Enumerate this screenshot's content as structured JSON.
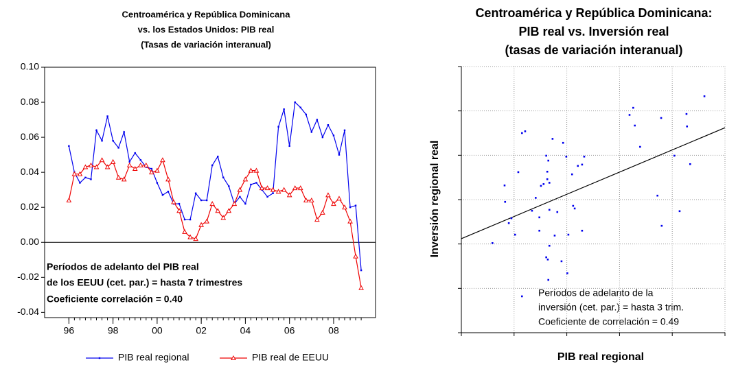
{
  "chart_data": [
    {
      "type": "line",
      "title": [
        "Centroamérica y República Dominicana",
        "vs. los Estados Unidos: PIB real",
        "(Tasas de variación interanual)"
      ],
      "annotations": [
        "Períodos de adelanto del PIB real",
        "de los EEUU (cet. par.) = hasta 7 trimestres",
        "Coeficiente correlación = 0.40"
      ],
      "x": [
        1996.0,
        1996.25,
        1996.5,
        1996.75,
        1997.0,
        1997.25,
        1997.5,
        1997.75,
        1998.0,
        1998.25,
        1998.5,
        1998.75,
        1999.0,
        1999.25,
        1999.5,
        1999.75,
        2000.0,
        2000.25,
        2000.5,
        2000.75,
        2001.0,
        2001.25,
        2001.5,
        2001.75,
        2002.0,
        2002.25,
        2002.5,
        2002.75,
        2003.0,
        2003.25,
        2003.5,
        2003.75,
        2004.0,
        2004.25,
        2004.5,
        2004.75,
        2005.0,
        2005.25,
        2005.5,
        2005.75,
        2006.0,
        2006.25,
        2006.5,
        2006.75,
        2007.0,
        2007.25,
        2007.5,
        2007.75,
        2008.0,
        2008.25,
        2008.5,
        2008.75,
        2009.0,
        2009.25
      ],
      "series": [
        {
          "name": "PIB real regional",
          "color": "#0000ee",
          "marker": "dot",
          "values": [
            0.055,
            0.04,
            0.034,
            0.037,
            0.036,
            0.064,
            0.058,
            0.072,
            0.058,
            0.054,
            0.063,
            0.046,
            0.051,
            0.047,
            0.043,
            0.042,
            0.034,
            0.027,
            0.029,
            0.022,
            0.022,
            0.013,
            0.013,
            0.028,
            0.024,
            0.024,
            0.044,
            0.049,
            0.037,
            0.032,
            0.022,
            0.026,
            0.022,
            0.033,
            0.034,
            0.03,
            0.026,
            0.028,
            0.066,
            0.076,
            0.055,
            0.08,
            0.077,
            0.073,
            0.063,
            0.07,
            0.06,
            0.067,
            0.061,
            0.05,
            0.064,
            0.02,
            0.021,
            -0.016
          ]
        },
        {
          "name": "PIB real de EEUU",
          "color": "#ee0000",
          "marker": "triangle",
          "values": [
            0.024,
            0.039,
            0.039,
            0.043,
            0.044,
            0.043,
            0.047,
            0.043,
            0.046,
            0.037,
            0.036,
            0.044,
            0.042,
            0.044,
            0.044,
            0.04,
            0.041,
            0.047,
            0.036,
            0.023,
            0.018,
            0.006,
            0.003,
            0.002,
            0.01,
            0.012,
            0.022,
            0.018,
            0.014,
            0.018,
            0.022,
            0.03,
            0.036,
            0.041,
            0.041,
            0.031,
            0.031,
            0.03,
            0.029,
            0.03,
            0.027,
            0.031,
            0.031,
            0.024,
            0.024,
            0.013,
            0.017,
            0.027,
            0.022,
            0.025,
            0.02,
            0.012,
            -0.008,
            -0.026
          ]
        }
      ],
      "xlim": [
        1994.9,
        2009.9
      ],
      "xticks": [
        {
          "value": 1996,
          "label": "96"
        },
        {
          "value": 1998,
          "label": "98"
        },
        {
          "value": 2000,
          "label": "00"
        },
        {
          "value": 2002,
          "label": "02"
        },
        {
          "value": 2004,
          "label": "04"
        },
        {
          "value": 2006,
          "label": "06"
        },
        {
          "value": 2008,
          "label": "08"
        }
      ],
      "ylim": [
        -0.043,
        0.1
      ],
      "yticks": [
        {
          "value": 0.1,
          "label": "0.10"
        },
        0.08,
        0.06,
        0.04,
        0.02,
        {
          "value": 0,
          "label": "0.00"
        },
        -0.02,
        -0.04
      ],
      "legend": "bottom"
    },
    {
      "type": "scatter",
      "title": [
        "Centroamérica y República Dominicana:",
        "PIB real vs. Inversión real",
        "(tasas de variación interanual)"
      ],
      "xlabel": "PIB real regional",
      "ylabel": "Inversión regional real",
      "annotations": [
        "Períodos de adelanto de la",
        "inversión (cet. par.) = hasta 3 trim.",
        "Coeficiente de correlación = 0.49"
      ],
      "color": "#0000ee",
      "x": [
        0.59,
        0.82,
        0.83,
        0.9,
        0.95,
        1.02,
        1.08,
        1.15,
        1.15,
        1.21,
        1.34,
        1.41,
        1.48,
        1.48,
        1.51,
        1.56,
        1.61,
        1.63,
        1.63,
        1.65,
        1.67,
        1.67,
        1.61,
        1.64,
        1.67,
        1.65,
        1.73,
        1.77,
        1.82,
        1.9,
        1.93,
        1.99,
        2.01,
        2.03,
        2.1,
        2.12,
        2.15,
        2.21,
        2.29,
        2.29,
        2.33,
        3.19,
        3.26,
        3.29,
        3.39,
        3.72,
        3.79,
        3.8,
        4.04,
        4.14,
        4.27,
        4.28,
        4.34,
        4.61
      ],
      "values": [
        2.02,
        3.32,
        2.95,
        2.47,
        2.58,
        2.21,
        3.62,
        0.82,
        4.5,
        4.54,
        2.75,
        3.04,
        2.3,
        2.6,
        3.31,
        3.35,
        3.99,
        3.46,
        3.63,
        3.88,
        3.38,
        2.77,
        1.7,
        1.65,
        1.96,
        1.19,
        4.37,
        2.19,
        2.72,
        1.61,
        4.28,
        3.97,
        1.34,
        2.21,
        3.57,
        2.86,
        2.8,
        3.76,
        3.79,
        2.3,
        3.97,
        4.91,
        5.07,
        4.67,
        4.19,
        3.09,
        4.84,
        2.41,
        3.99,
        2.74,
        4.93,
        4.65,
        3.8,
        5.33
      ],
      "trend": {
        "x": [
          0,
          5
        ],
        "values": [
          2.12,
          4.62
        ]
      },
      "xlim": [
        0,
        5
      ],
      "ylim": [
        0,
        6
      ],
      "xticks": [
        0,
        1,
        2,
        3,
        4,
        5
      ],
      "yticks": [
        0,
        1,
        2,
        3,
        4,
        5,
        6
      ],
      "grid": true,
      "tick_labels": false
    }
  ]
}
